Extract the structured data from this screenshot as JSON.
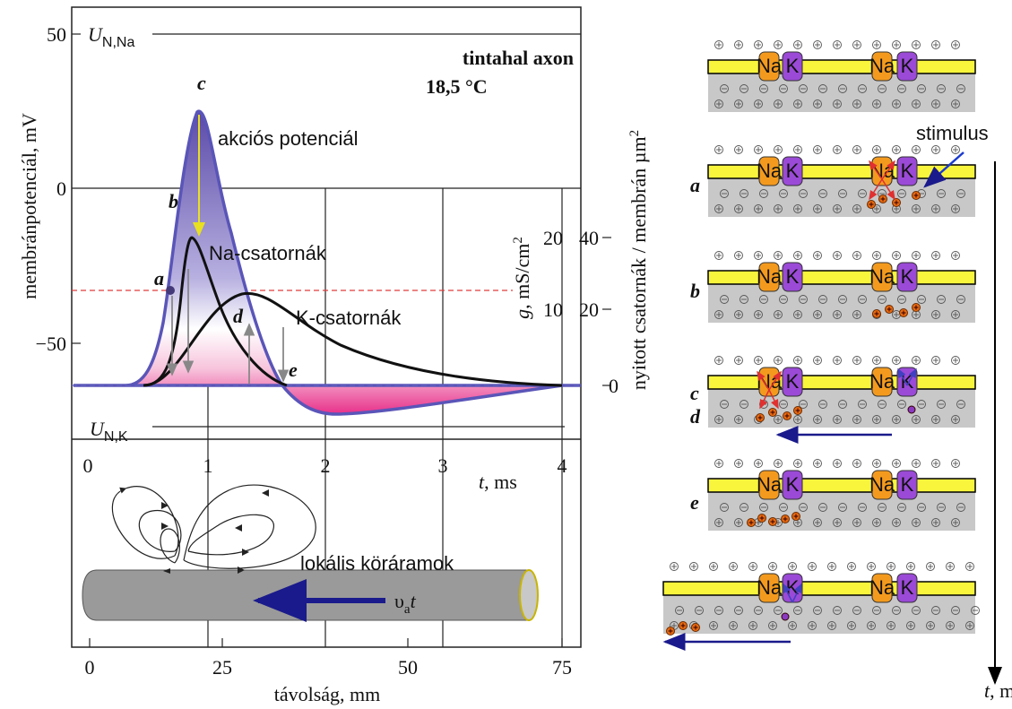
{
  "plot": {
    "y_axis_label": "membránpotenciál, mV",
    "y_ticks": [
      "50",
      "0",
      "−50"
    ],
    "time_ticks": [
      "0",
      "1",
      "2",
      "3",
      "4"
    ],
    "time_label": {
      "symbol": "t",
      "text": ", ms"
    },
    "conductance_label": {
      "symbol": "g",
      "text": ", mS/cm",
      "superscript": "2"
    },
    "conductance_ticks": [
      "20",
      "10"
    ],
    "channel_ticks": [
      "40",
      "20",
      "0"
    ],
    "channel_label": {
      "text": "nyitott csatornák / membrán µm",
      "superscript": "2"
    },
    "title": "tintahal axon",
    "temperature": "18,5 °C",
    "sodium_potential": {
      "symbol": "U",
      "subscript": "N,Na"
    },
    "potassium_potential": {
      "symbol": "U",
      "subscript": "N,K"
    },
    "action_potential_label": "akciós potenciál",
    "sodium_curve_label": "Na-csatornák",
    "potassium_curve_label": "K-csatornák",
    "points": [
      "a",
      "b",
      "c",
      "d",
      "e"
    ]
  },
  "axon": {
    "currents_label": "lokális köráramok",
    "velocity": {
      "symbol": "υ",
      "subscript": "a",
      "suffix": "t"
    },
    "distance_ticks": [
      "0",
      "25",
      "50",
      "75"
    ],
    "distance_label": "távolság, mm"
  },
  "membrane": {
    "sodium_channel": "Na",
    "potassium_channel": "K",
    "stimulus": "stimulus",
    "stages": [
      "a",
      "b",
      "c",
      "d",
      "e"
    ],
    "time_label": {
      "symbol": "t",
      "text": ", ms"
    }
  }
}
